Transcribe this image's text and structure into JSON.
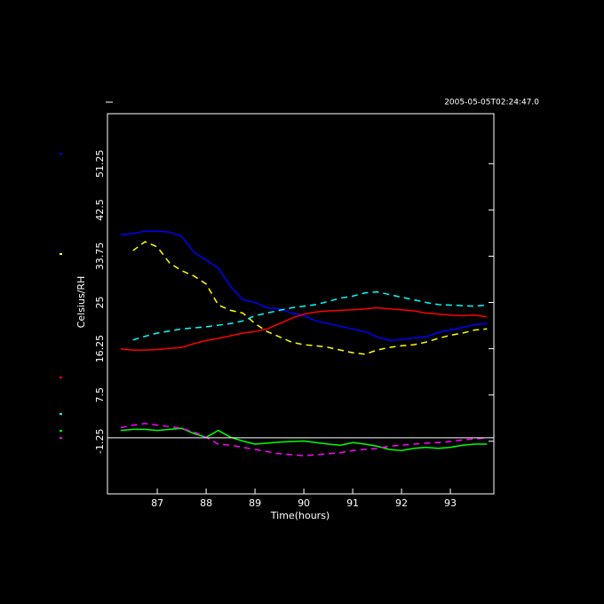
{
  "chart_data": {
    "type": "line",
    "title": "2005-05-05T02:24:47.0",
    "xlabel": "Time(hours)",
    "ylabel": "Celsius/RH",
    "xlim": [
      85.98,
      93.89
    ],
    "ylim": [
      -11.2,
      60.7
    ],
    "xticks": [
      87,
      88,
      89,
      90,
      91,
      92,
      93
    ],
    "yticks": [
      -1.25,
      7.5,
      16.25,
      25,
      33.75,
      42.5,
      51.25
    ],
    "x": [
      86.25,
      86.5,
      86.75,
      87,
      87.25,
      87.5,
      87.75,
      88,
      88.25,
      88.5,
      88.75,
      89,
      89.25,
      89.5,
      89.75,
      90,
      90.25,
      90.5,
      90.75,
      91,
      91.25,
      91.5,
      91.75,
      92,
      92.25,
      92.5,
      92.75,
      93,
      93.25,
      93.5,
      93.75
    ],
    "series": [
      {
        "color": "#0000ff",
        "dashed": false,
        "values": [
          37.8,
          38.0,
          38.5,
          38.5,
          38.3,
          37.5,
          34.5,
          33.0,
          31.5,
          28.0,
          25.5,
          25.0,
          24.0,
          23.8,
          23.0,
          22.5,
          21.5,
          21.0,
          20.5,
          20.0,
          19.5,
          18.5,
          17.8,
          18.0,
          18.3,
          18.5,
          19.3,
          19.8,
          20.3,
          20.8,
          21.0
        ]
      },
      {
        "color": "#ffff00",
        "dashed": true,
        "values": [
          null,
          34.8,
          36.5,
          35.5,
          32.5,
          31.0,
          30.0,
          28.5,
          24.5,
          23.5,
          23.0,
          21.0,
          19.5,
          18.5,
          17.5,
          17.0,
          16.8,
          16.5,
          16.0,
          15.5,
          15.2,
          16.0,
          16.5,
          16.8,
          17.0,
          17.5,
          18.2,
          18.8,
          19.2,
          19.8,
          20.0
        ]
      },
      {
        "color": "#00ffff",
        "dashed": true,
        "values": [
          null,
          17.9,
          18.6,
          19.2,
          19.6,
          20.0,
          20.2,
          20.4,
          20.7,
          21.0,
          21.5,
          22.5,
          23.0,
          23.5,
          24.0,
          24.3,
          24.6,
          25.2,
          25.8,
          26.2,
          26.8,
          27.0,
          26.5,
          26.0,
          25.5,
          25.0,
          24.6,
          24.5,
          24.4,
          24.3,
          24.5
        ]
      },
      {
        "color": "#ff0000",
        "dashed": false,
        "values": [
          16.2,
          16.0,
          16.0,
          16.1,
          16.3,
          16.5,
          17.2,
          17.8,
          18.2,
          18.7,
          19.2,
          19.5,
          20.0,
          21.0,
          22.0,
          22.8,
          23.2,
          23.4,
          23.5,
          23.6,
          23.8,
          24.0,
          23.8,
          23.6,
          23.4,
          23.0,
          22.8,
          22.6,
          22.5,
          22.6,
          22.3
        ]
      },
      {
        "color": "#00ff00",
        "dashed": false,
        "values": [
          0.8,
          1.0,
          1.0,
          0.8,
          1.0,
          1.2,
          0.2,
          -0.5,
          0.8,
          -0.5,
          -1.2,
          -1.8,
          -1.6,
          -1.4,
          -1.3,
          -1.2,
          -1.5,
          -1.8,
          -2.0,
          -1.5,
          -1.8,
          -2.2,
          -2.8,
          -3.0,
          -2.6,
          -2.4,
          -2.6,
          -2.4,
          -2.0,
          -1.8,
          -1.8
        ]
      },
      {
        "color": "#ff00ff",
        "dashed": true,
        "values": [
          1.3,
          1.8,
          2.1,
          1.8,
          1.5,
          1.2,
          0.5,
          -0.5,
          -1.8,
          -2.0,
          -2.4,
          -2.8,
          -3.2,
          -3.6,
          -3.8,
          -4.0,
          -3.8,
          -3.6,
          -3.4,
          -3.0,
          -2.8,
          -2.6,
          -2.2,
          -2.0,
          -1.8,
          -1.6,
          -1.5,
          -1.3,
          -1.0,
          -0.8,
          -0.6
        ]
      }
    ],
    "hline": -0.6,
    "hline_color": "#ffffff"
  }
}
